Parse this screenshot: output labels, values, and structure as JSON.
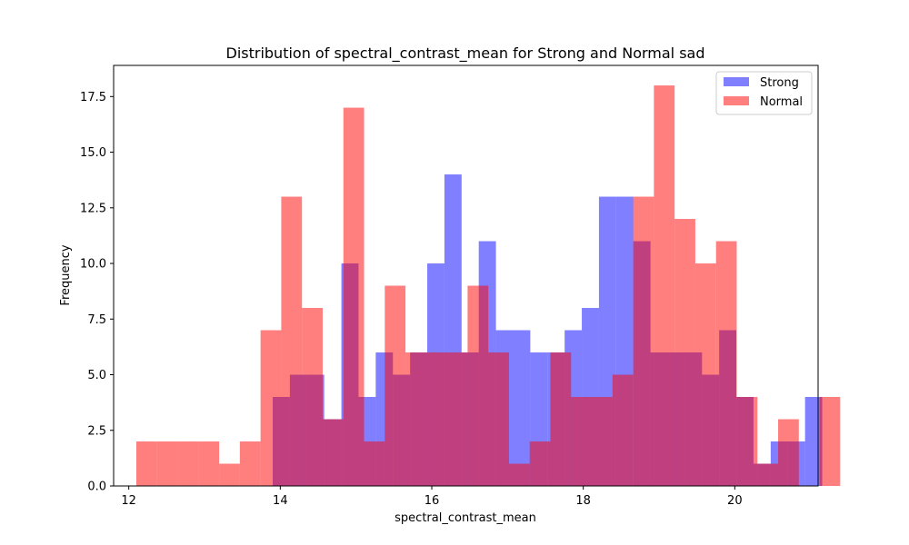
{
  "chart_data": {
    "type": "bar",
    "title": "Distribution of spectral_contrast_mean for Strong and Normal sad",
    "xlabel": "spectral_contrast_mean",
    "ylabel": "Frequency",
    "xlim": [
      11.8,
      21.1
    ],
    "ylim": [
      0,
      18.9
    ],
    "xticks": [
      12,
      14,
      16,
      18,
      20
    ],
    "xtick_labels": [
      "12",
      "14",
      "16",
      "18",
      "20"
    ],
    "yticks": [
      0,
      2.5,
      5,
      7.5,
      10,
      12.5,
      15,
      17.5
    ],
    "ytick_labels": [
      "0.0",
      "2.5",
      "5.0",
      "7.5",
      "10.0",
      "12.5",
      "15.0",
      "17.5"
    ],
    "legend_position": "top-right",
    "grid": false,
    "series": [
      {
        "name": "Strong",
        "color": "#0000ff",
        "alpha": 0.5,
        "bin_start": 13.9,
        "bin_width": 0.2267,
        "values": [
          4,
          5,
          5,
          3,
          10,
          4,
          6,
          5,
          6,
          10,
          14,
          6,
          11,
          7,
          7,
          6,
          6,
          7,
          8,
          13,
          13,
          11,
          6,
          6,
          6,
          5,
          7,
          4,
          1,
          2,
          2,
          4
        ]
      },
      {
        "name": "Normal",
        "color": "#ff0000",
        "alpha": 0.5,
        "bin_start": 12.1,
        "bin_width": 0.2733,
        "values": [
          2,
          2,
          2,
          2,
          1,
          2,
          7,
          13,
          8,
          3,
          17,
          2,
          9,
          6,
          6,
          6,
          9,
          6,
          1,
          2,
          6,
          4,
          4,
          5,
          13,
          18,
          12,
          10,
          11,
          4,
          1,
          3,
          0,
          4
        ]
      }
    ]
  }
}
